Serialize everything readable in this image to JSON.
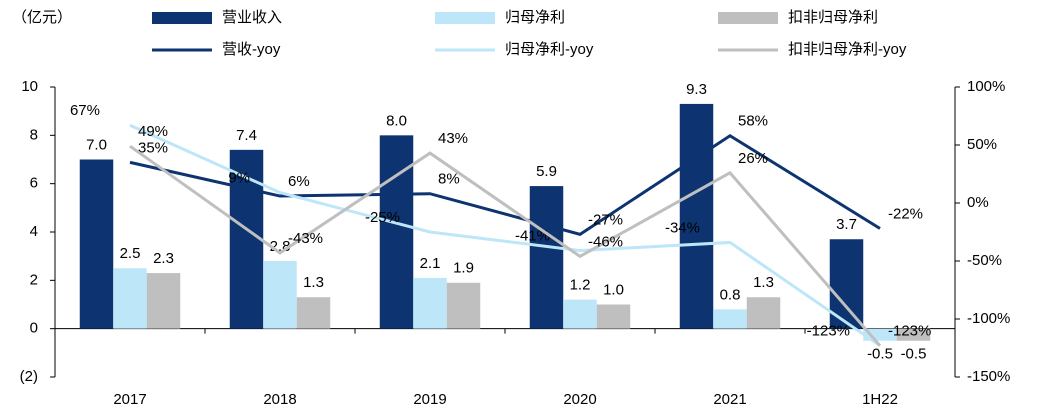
{
  "chart_data": {
    "type": "bar_line",
    "unit_label": "（亿元）",
    "categories": [
      "2017",
      "2018",
      "2019",
      "2020",
      "2021",
      "1H22"
    ],
    "series": [
      {
        "name": "营业收入",
        "type": "bar",
        "color": "#0d3470",
        "values": [
          7.0,
          7.4,
          8.0,
          5.9,
          9.3,
          3.7
        ],
        "value_labels": [
          "7.0",
          "7.4",
          "8.0",
          "5.9",
          "9.3",
          "3.7"
        ]
      },
      {
        "name": "归母净利",
        "type": "bar",
        "color": "#bde6f8",
        "values": [
          2.5,
          2.8,
          2.1,
          1.2,
          0.8,
          -0.5
        ],
        "value_labels": [
          "2.5",
          "2.8",
          "2.1",
          "1.2",
          "0.8",
          "-0.5"
        ]
      },
      {
        "name": "扣非归母净利",
        "type": "bar",
        "color": "#bfbfbf",
        "values": [
          2.3,
          1.3,
          1.9,
          1.0,
          1.3,
          -0.5
        ],
        "value_labels": [
          "2.3",
          "1.3",
          "1.9",
          "1.0",
          "1.3",
          "-0.5"
        ]
      },
      {
        "name": "营收-yoy",
        "type": "line",
        "axis": "y2",
        "color": "#0d3470",
        "values": [
          35,
          6,
          8,
          -27,
          58,
          -22
        ],
        "value_labels": [
          "35%",
          "6%",
          "8%",
          "-27%",
          "58%",
          "-22%"
        ]
      },
      {
        "name": "归母净利-yoy",
        "type": "line",
        "axis": "y2",
        "color": "#bde6f8",
        "values": [
          67,
          9,
          -25,
          -41,
          -34,
          -123
        ],
        "value_labels": [
          "67%",
          "9%",
          "-25%",
          "-41%",
          "-34%",
          "-123%"
        ]
      },
      {
        "name": "扣非归母净利-yoy",
        "type": "line",
        "axis": "y2",
        "color": "#bfbfbf",
        "values": [
          49,
          -43,
          43,
          -46,
          26,
          -123
        ],
        "value_labels": [
          "49%",
          "-43%",
          "43%",
          "-46%",
          "26%",
          "-123%"
        ]
      }
    ],
    "ylim": [
      -2,
      10
    ],
    "yticks": [
      {
        "value": -2,
        "label": "(2)"
      },
      0,
      2,
      4,
      6,
      8,
      10
    ],
    "y2lim": [
      -150,
      100
    ],
    "y2ticks": [
      {
        "value": -150,
        "label": "-150%"
      },
      {
        "value": -100,
        "label": "-100%"
      },
      {
        "value": -50,
        "label": "-50%"
      },
      {
        "value": 0,
        "label": "0%"
      },
      {
        "value": 50,
        "label": "50%"
      },
      {
        "value": 100,
        "label": "100%"
      }
    ]
  }
}
